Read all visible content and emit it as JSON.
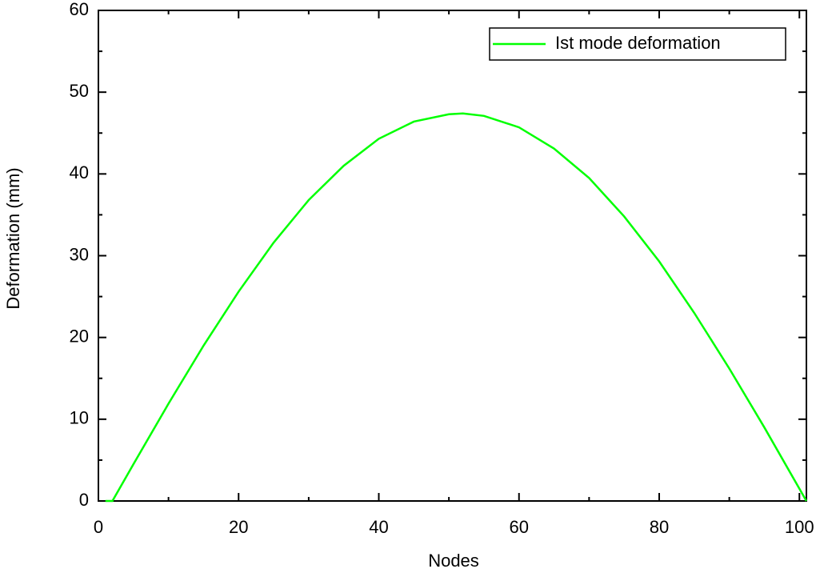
{
  "chart_data": {
    "type": "line",
    "xlabel": "Nodes",
    "ylabel": "Deformation (mm)",
    "x": [
      1,
      2,
      5,
      10,
      15,
      20,
      25,
      30,
      35,
      40,
      45,
      50,
      52,
      55,
      60,
      65,
      70,
      75,
      80,
      85,
      90,
      95,
      100,
      101
    ],
    "series": [
      {
        "name": "Ist mode deformation",
        "color": "#00ff00",
        "values": [
          0,
          0,
          4.5,
          11.9,
          19.0,
          25.6,
          31.6,
          36.8,
          41.0,
          44.3,
          46.4,
          47.3,
          47.4,
          47.1,
          45.7,
          43.1,
          39.5,
          34.8,
          29.3,
          23.0,
          16.2,
          9.0,
          1.5,
          0
        ]
      }
    ],
    "xlim": [
      0,
      101
    ],
    "ylim": [
      0,
      60
    ],
    "xticks": [
      0,
      20,
      40,
      60,
      80,
      100
    ],
    "yticks": [
      0,
      10,
      20,
      30,
      40,
      50,
      60
    ],
    "legend": "upper right"
  }
}
